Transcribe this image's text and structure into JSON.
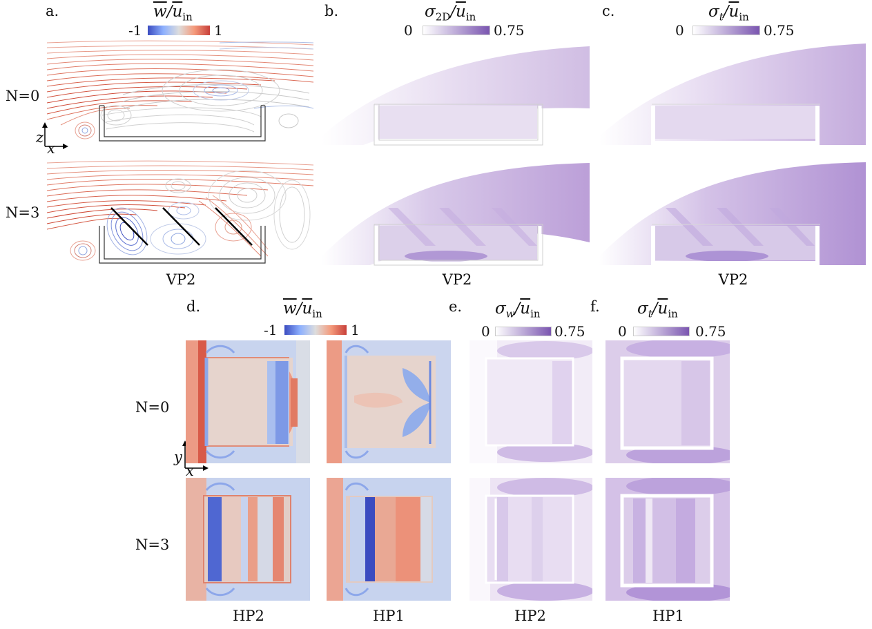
{
  "panel_letters": [
    "a.",
    "b.",
    "c.",
    "d.",
    "e.",
    "f."
  ],
  "row_labels": [
    "N=0",
    "N=3",
    "N=0",
    "N=3"
  ],
  "axis_labels": {
    "z": "z",
    "x": "x",
    "y": "y"
  },
  "captions": {
    "top": [
      "VP2",
      "VP2",
      "VP2"
    ],
    "bottom": [
      "HP2",
      "HP1",
      "HP2",
      "HP1"
    ]
  },
  "colorbars": {
    "w_top": {
      "num": "w",
      "den": "u",
      "sub": "in",
      "min": "-1",
      "max": "1"
    },
    "sigma2d": {
      "sym": "σ",
      "sub": "2D",
      "den": "u",
      "densub": "in",
      "min": "0",
      "max": "0.75"
    },
    "sigmat_top": {
      "sym": "σ",
      "sub": "t",
      "den": "u",
      "densub": "in",
      "min": "0",
      "max": "0.75"
    },
    "w_bottom": {
      "num": "w",
      "den": "u",
      "sub": "in",
      "min": "-1",
      "max": "1"
    },
    "sigmaw": {
      "sym": "σ",
      "sub": "w",
      "den": "u",
      "densub": "in",
      "min": "0",
      "max": "0.75"
    },
    "sigmat_bottom": {
      "sym": "σ",
      "sub": "t",
      "den": "u",
      "densub": "in",
      "min": "0",
      "max": "0.75"
    }
  },
  "colors": {
    "blue": "#3b4cc0",
    "red": "#d6604d",
    "neutral": "#dddddd",
    "purple": "#7f5bb0"
  }
}
